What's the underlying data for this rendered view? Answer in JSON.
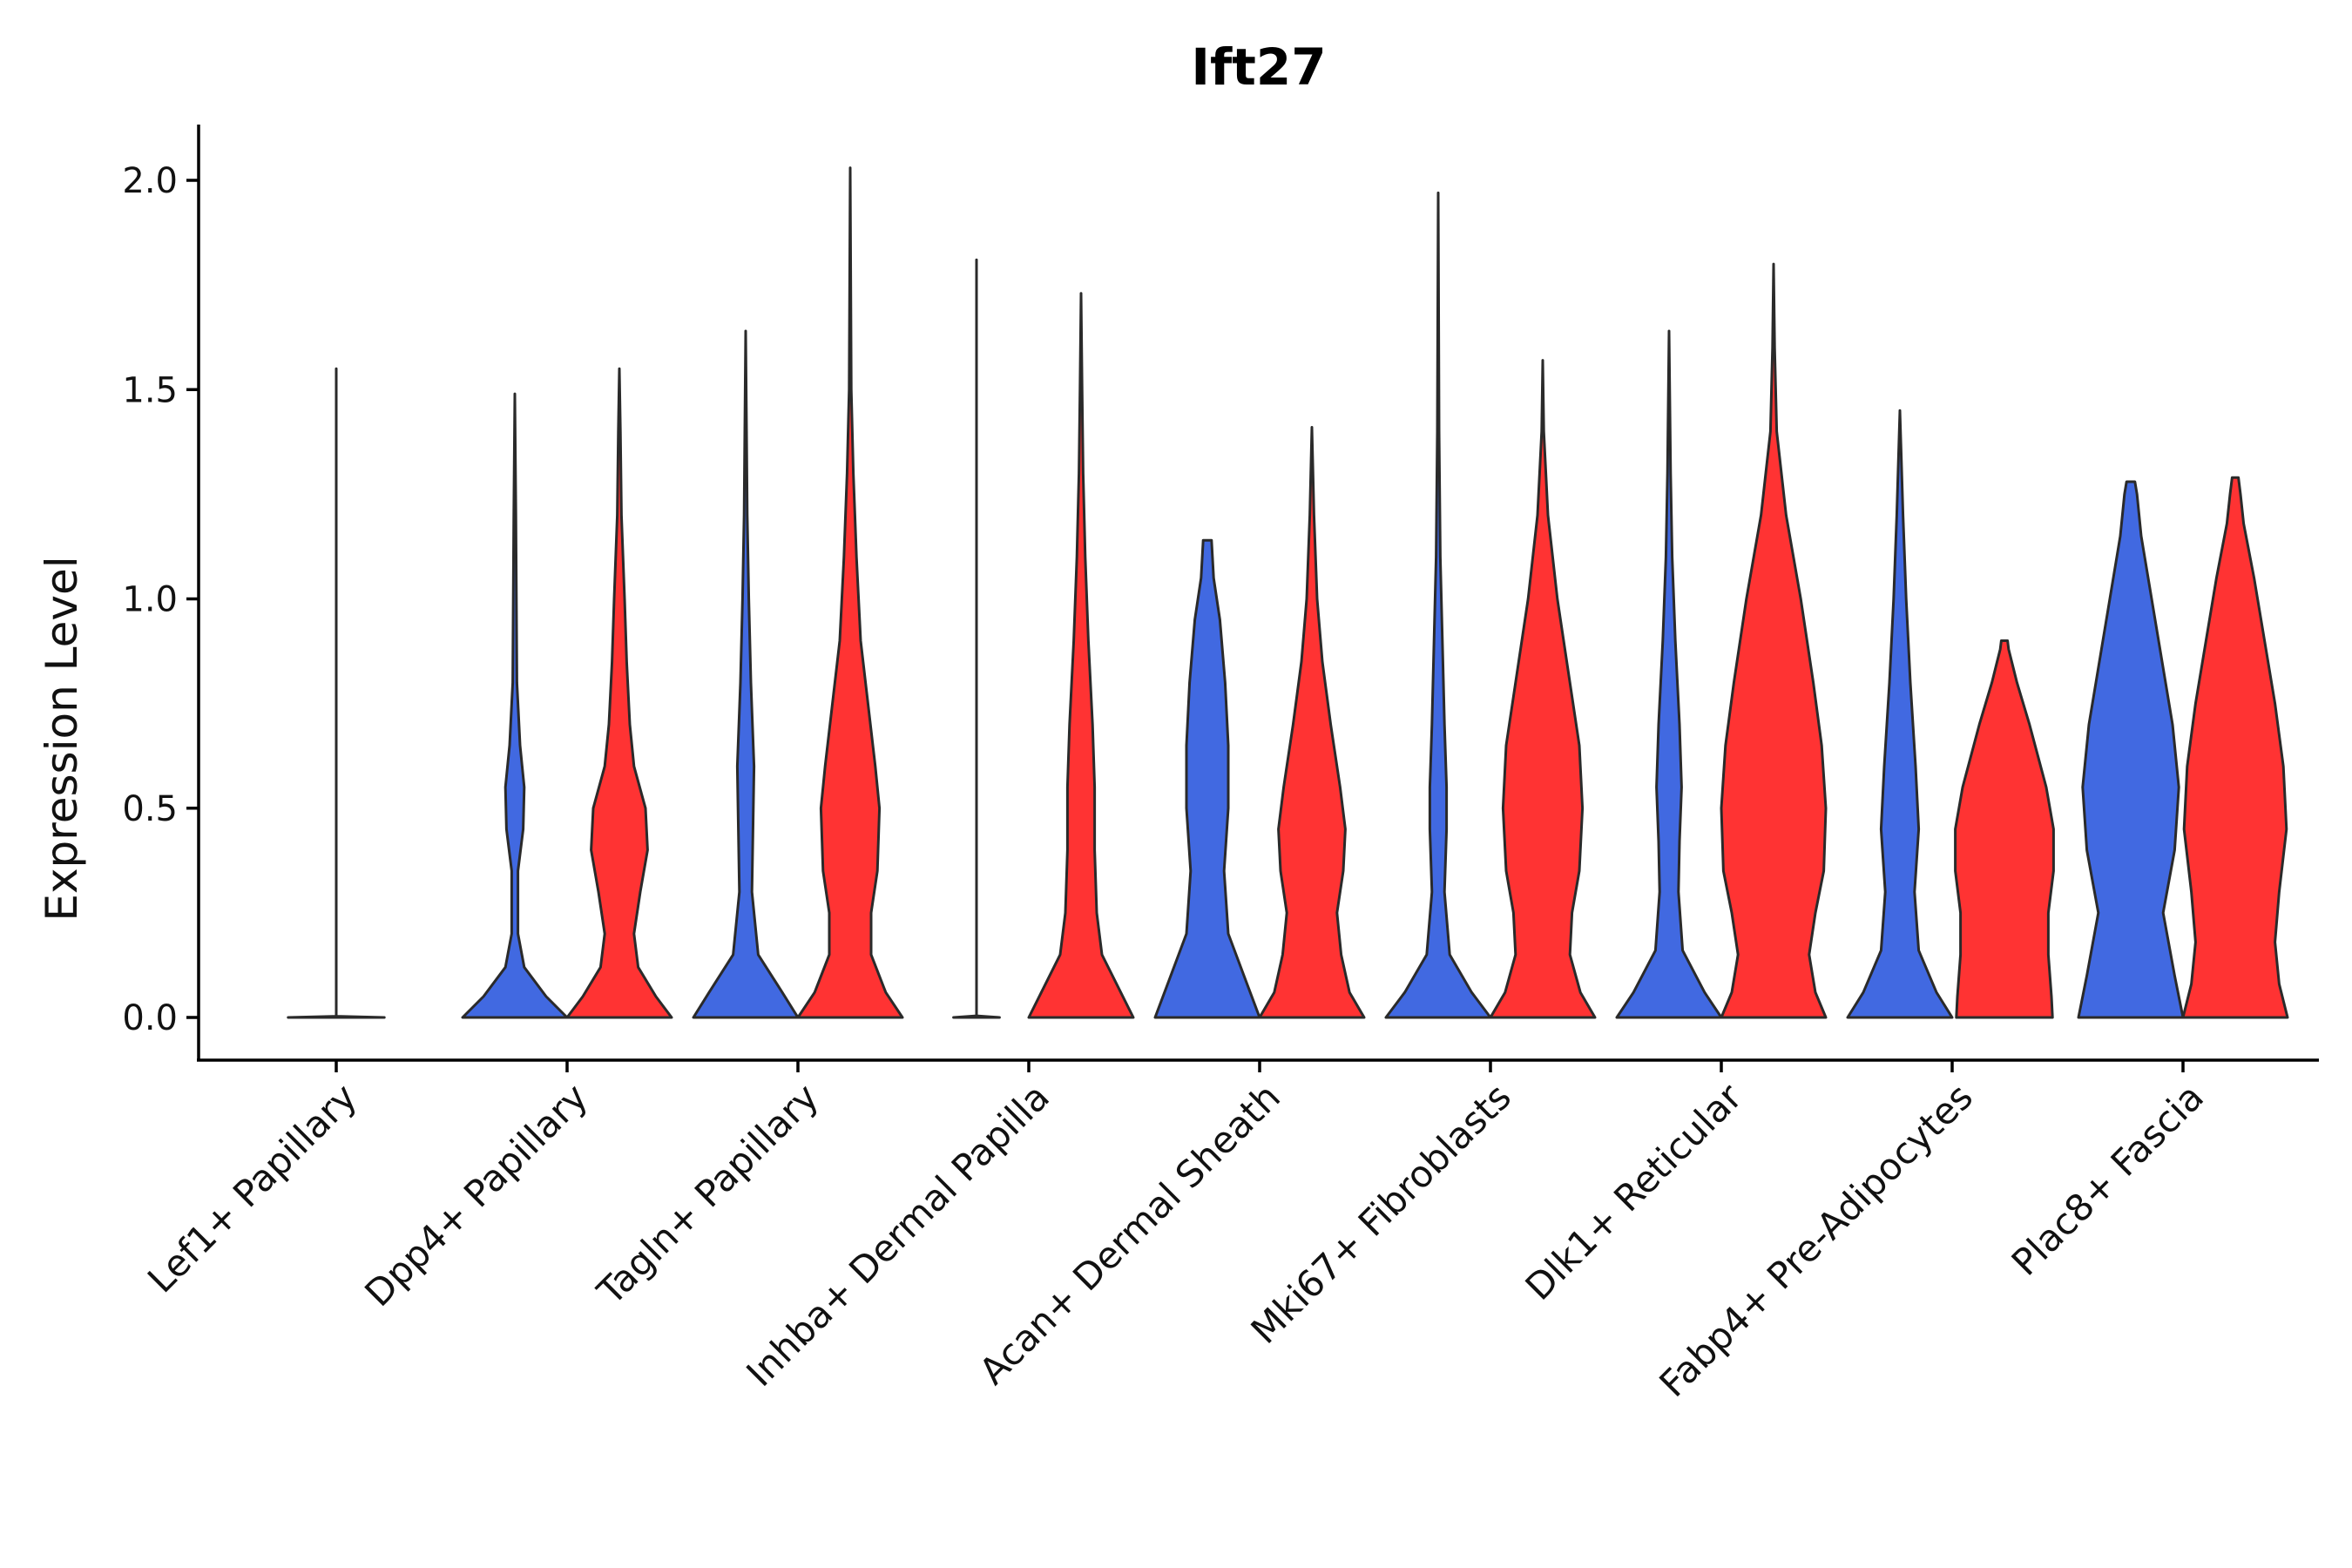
{
  "chart_data": {
    "type": "violin",
    "title": "Ift27",
    "xlabel": "",
    "ylabel": "Expression Level",
    "ylim": [
      -0.1,
      2.15
    ],
    "yticks": [
      0.0,
      0.5,
      1.0,
      1.5,
      2.0
    ],
    "ytick_labels": [
      "0.0",
      "0.5",
      "1.0",
      "1.5",
      "2.0"
    ],
    "grid": false,
    "legend": "none",
    "colors": {
      "blue": "#4169E1",
      "red": "#FF3333",
      "outline": "#2a2a2a"
    },
    "categories": [
      "Lef1+ Papillary",
      "Dpp4+ Papillary",
      "Tagln+ Papillary",
      "Inhba+ Dermal Papilla",
      "Acan+ Dermal Sheath",
      "Mki67+ Fibroblasts",
      "Dlk1+ Reticular",
      "Fabp4+ Pre-Adipocytes",
      "Plac8+ Fascia"
    ],
    "series": [
      {
        "name": "blue",
        "max": [
          1.55,
          1.49,
          1.64,
          1.81,
          1.14,
          1.97,
          1.64,
          1.45,
          1.28
        ],
        "profile": [
          [
            [
              0,
              0.46
            ],
            [
              0.003,
              0.0
            ],
            [
              0.01,
              0.0
            ],
            [
              1.55,
              0.0
            ]
          ],
          [
            [
              0,
              0.5
            ],
            [
              0.05,
              0.3
            ],
            [
              0.12,
              0.09
            ],
            [
              0.2,
              0.03
            ],
            [
              0.35,
              0.03
            ],
            [
              0.45,
              0.08
            ],
            [
              0.55,
              0.09
            ],
            [
              0.65,
              0.05
            ],
            [
              0.8,
              0.02
            ],
            [
              1.0,
              0.015
            ],
            [
              1.2,
              0.01
            ],
            [
              1.49,
              0.0
            ]
          ],
          [
            [
              0,
              0.5
            ],
            [
              0.06,
              0.35
            ],
            [
              0.15,
              0.12
            ],
            [
              0.3,
              0.06
            ],
            [
              0.45,
              0.07
            ],
            [
              0.6,
              0.08
            ],
            [
              0.8,
              0.05
            ],
            [
              1.0,
              0.03
            ],
            [
              1.2,
              0.015
            ],
            [
              1.4,
              0.008
            ],
            [
              1.64,
              0.0
            ]
          ],
          [
            [
              0,
              0.22
            ],
            [
              0.004,
              0.0
            ],
            [
              1.81,
              0.0
            ]
          ],
          [
            [
              0,
              0.5
            ],
            [
              0.08,
              0.38
            ],
            [
              0.2,
              0.2
            ],
            [
              0.35,
              0.16
            ],
            [
              0.5,
              0.2
            ],
            [
              0.65,
              0.2
            ],
            [
              0.8,
              0.17
            ],
            [
              0.95,
              0.12
            ],
            [
              1.05,
              0.06
            ],
            [
              1.14,
              0.04
            ]
          ],
          [
            [
              0,
              0.5
            ],
            [
              0.06,
              0.32
            ],
            [
              0.15,
              0.11
            ],
            [
              0.3,
              0.06
            ],
            [
              0.45,
              0.08
            ],
            [
              0.55,
              0.08
            ],
            [
              0.7,
              0.06
            ],
            [
              0.9,
              0.04
            ],
            [
              1.1,
              0.02
            ],
            [
              1.4,
              0.008
            ],
            [
              1.97,
              0.0
            ]
          ],
          [
            [
              0,
              0.5
            ],
            [
              0.06,
              0.34
            ],
            [
              0.16,
              0.13
            ],
            [
              0.3,
              0.09
            ],
            [
              0.42,
              0.1
            ],
            [
              0.55,
              0.12
            ],
            [
              0.7,
              0.1
            ],
            [
              0.9,
              0.06
            ],
            [
              1.1,
              0.03
            ],
            [
              1.3,
              0.015
            ],
            [
              1.64,
              0.0
            ]
          ],
          [
            [
              0,
              0.5
            ],
            [
              0.06,
              0.35
            ],
            [
              0.16,
              0.18
            ],
            [
              0.3,
              0.14
            ],
            [
              0.45,
              0.18
            ],
            [
              0.6,
              0.15
            ],
            [
              0.8,
              0.1
            ],
            [
              1.0,
              0.06
            ],
            [
              1.2,
              0.03
            ],
            [
              1.45,
              0.0
            ]
          ],
          [
            [
              0,
              0.5
            ],
            [
              0.1,
              0.42
            ],
            [
              0.25,
              0.31
            ],
            [
              0.4,
              0.42
            ],
            [
              0.55,
              0.46
            ],
            [
              0.7,
              0.4
            ],
            [
              0.85,
              0.3
            ],
            [
              1.0,
              0.2
            ],
            [
              1.15,
              0.1
            ],
            [
              1.25,
              0.06
            ],
            [
              1.28,
              0.04
            ]
          ]
        ]
      },
      {
        "name": "red",
        "max": [
          null,
          1.55,
          2.03,
          1.73,
          1.41,
          1.57,
          1.8,
          0.9,
          1.29
        ],
        "profile": [
          [],
          [
            [
              0,
              0.5
            ],
            [
              0.05,
              0.35
            ],
            [
              0.12,
              0.18
            ],
            [
              0.2,
              0.14
            ],
            [
              0.3,
              0.2
            ],
            [
              0.4,
              0.27
            ],
            [
              0.5,
              0.25
            ],
            [
              0.6,
              0.14
            ],
            [
              0.7,
              0.1
            ],
            [
              0.85,
              0.07
            ],
            [
              1.0,
              0.05
            ],
            [
              1.2,
              0.02
            ],
            [
              1.4,
              0.01
            ],
            [
              1.55,
              0.0
            ]
          ],
          [
            [
              0,
              0.5
            ],
            [
              0.06,
              0.34
            ],
            [
              0.15,
              0.2
            ],
            [
              0.25,
              0.2
            ],
            [
              0.35,
              0.26
            ],
            [
              0.5,
              0.28
            ],
            [
              0.6,
              0.24
            ],
            [
              0.75,
              0.17
            ],
            [
              0.9,
              0.1
            ],
            [
              1.1,
              0.06
            ],
            [
              1.3,
              0.03
            ],
            [
              1.5,
              0.01
            ],
            [
              2.03,
              0.0
            ]
          ],
          [
            [
              0,
              0.5
            ],
            [
              0.06,
              0.38
            ],
            [
              0.15,
              0.2
            ],
            [
              0.25,
              0.15
            ],
            [
              0.4,
              0.13
            ],
            [
              0.55,
              0.13
            ],
            [
              0.7,
              0.11
            ],
            [
              0.9,
              0.07
            ],
            [
              1.1,
              0.04
            ],
            [
              1.3,
              0.02
            ],
            [
              1.5,
              0.01
            ],
            [
              1.73,
              0.0
            ]
          ],
          [
            [
              0,
              0.5
            ],
            [
              0.06,
              0.36
            ],
            [
              0.15,
              0.28
            ],
            [
              0.25,
              0.24
            ],
            [
              0.35,
              0.3
            ],
            [
              0.45,
              0.32
            ],
            [
              0.55,
              0.27
            ],
            [
              0.7,
              0.18
            ],
            [
              0.85,
              0.1
            ],
            [
              1.0,
              0.05
            ],
            [
              1.2,
              0.02
            ],
            [
              1.41,
              0.0
            ]
          ],
          [
            [
              0,
              0.5
            ],
            [
              0.06,
              0.36
            ],
            [
              0.15,
              0.26
            ],
            [
              0.25,
              0.28
            ],
            [
              0.35,
              0.35
            ],
            [
              0.5,
              0.38
            ],
            [
              0.65,
              0.35
            ],
            [
              0.8,
              0.26
            ],
            [
              1.0,
              0.14
            ],
            [
              1.2,
              0.05
            ],
            [
              1.4,
              0.01
            ],
            [
              1.57,
              0.0
            ]
          ],
          [
            [
              0,
              0.5
            ],
            [
              0.06,
              0.4
            ],
            [
              0.15,
              0.34
            ],
            [
              0.25,
              0.4
            ],
            [
              0.35,
              0.48
            ],
            [
              0.5,
              0.5
            ],
            [
              0.65,
              0.46
            ],
            [
              0.8,
              0.38
            ],
            [
              1.0,
              0.26
            ],
            [
              1.2,
              0.12
            ],
            [
              1.4,
              0.03
            ],
            [
              1.6,
              0.01
            ],
            [
              1.8,
              0.0
            ]
          ],
          [
            [
              0,
              0.46
            ],
            [
              0.05,
              0.45
            ],
            [
              0.15,
              0.42
            ],
            [
              0.25,
              0.42
            ],
            [
              0.35,
              0.47
            ],
            [
              0.45,
              0.47
            ],
            [
              0.55,
              0.4
            ],
            [
              0.7,
              0.24
            ],
            [
              0.8,
              0.12
            ],
            [
              0.88,
              0.04
            ],
            [
              0.9,
              0.03
            ]
          ],
          [
            [
              0,
              0.5
            ],
            [
              0.08,
              0.42
            ],
            [
              0.18,
              0.38
            ],
            [
              0.3,
              0.42
            ],
            [
              0.45,
              0.49
            ],
            [
              0.6,
              0.46
            ],
            [
              0.75,
              0.38
            ],
            [
              0.9,
              0.28
            ],
            [
              1.05,
              0.18
            ],
            [
              1.18,
              0.08
            ],
            [
              1.25,
              0.05
            ],
            [
              1.29,
              0.03
            ]
          ]
        ]
      }
    ]
  }
}
